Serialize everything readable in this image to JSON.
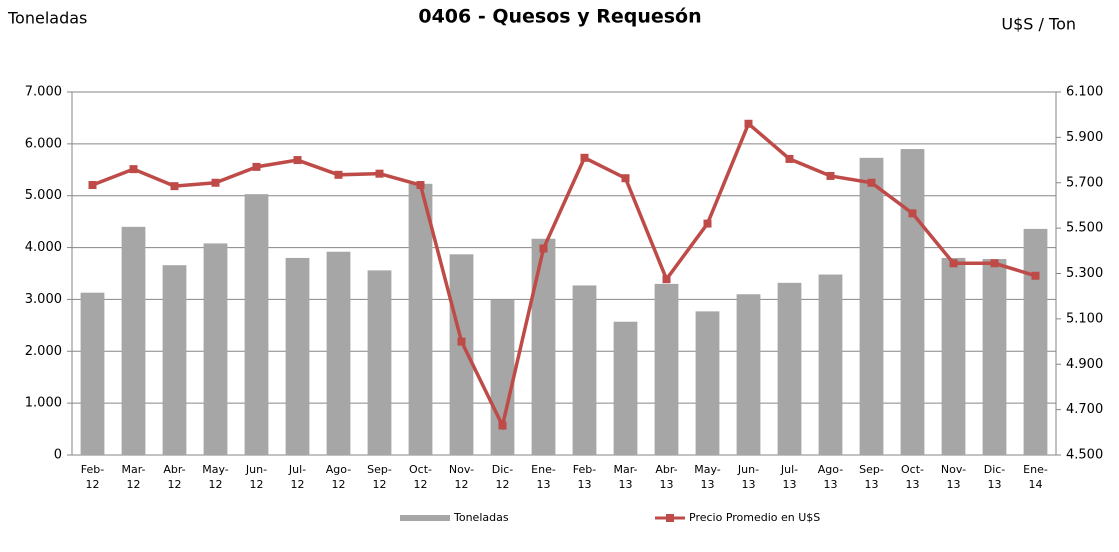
{
  "chart_data": {
    "type": "bar_line",
    "title": "0406 - Quesos y Requesón",
    "y_label": "Toneladas",
    "y2_label": "U$S / Ton",
    "categories": [
      "Feb-12",
      "Mar-12",
      "Abr-12",
      "May-12",
      "Jun-12",
      "Jul-12",
      "Ago-12",
      "Sep-12",
      "Oct-12",
      "Nov-12",
      "Dic-12",
      "Ene-13",
      "Feb-13",
      "Mar-13",
      "Abr-13",
      "May-13",
      "Jun-13",
      "Jul-13",
      "Ago-13",
      "Sep-13",
      "Oct-13",
      "Nov-13",
      "Dic-13",
      "Ene-14"
    ],
    "series": [
      {
        "name": "Toneladas",
        "type": "bar",
        "color": "#a6a6a6",
        "values": [
          3130,
          4400,
          3660,
          4080,
          5030,
          3800,
          3920,
          3560,
          5230,
          3870,
          3000,
          4170,
          3270,
          2570,
          3300,
          2770,
          3100,
          3320,
          3480,
          5730,
          5900,
          3800,
          3780,
          4360
        ]
      },
      {
        "name": "Precio Promedio en  U$S",
        "type": "line",
        "axis": "y2",
        "color": "#be4b48",
        "values": [
          5690,
          5760,
          5685,
          5700,
          5770,
          5800,
          5735,
          5740,
          5690,
          5000,
          4630,
          5410,
          5810,
          5720,
          5275,
          5520,
          5960,
          5805,
          5730,
          5700,
          5565,
          5345,
          5345,
          5290
        ]
      }
    ],
    "ylim": [
      0,
      7000
    ],
    "yticks": [
      0,
      {
        "value": 1000,
        "label": "1.000"
      },
      {
        "value": 2000,
        "label": "2.000"
      },
      {
        "value": 3000,
        "label": "3.000"
      },
      {
        "value": 4000,
        "label": "4.000"
      },
      {
        "value": 5000,
        "label": "5.000"
      },
      {
        "value": 6000,
        "label": "6.000"
      },
      {
        "value": 7000,
        "label": "7.000"
      }
    ],
    "y2lim": [
      4500,
      6100
    ],
    "y2ticks": [
      {
        "value": 4500,
        "label": "4.500"
      },
      {
        "value": 4700,
        "label": "4.700"
      },
      {
        "value": 4900,
        "label": "4.900"
      },
      {
        "value": 5100,
        "label": "5.100"
      },
      {
        "value": 5300,
        "label": "5.300"
      },
      {
        "value": 5500,
        "label": "5.500"
      },
      {
        "value": 5700,
        "label": "5.700"
      },
      {
        "value": 5900,
        "label": "5.900"
      },
      {
        "value": 6100,
        "label": "6.100"
      }
    ],
    "grid": true,
    "legend": "bottom"
  }
}
